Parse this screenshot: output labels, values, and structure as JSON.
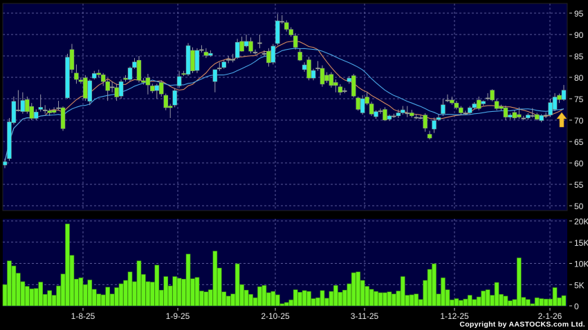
{
  "chart_data": [
    {
      "type": "candlestick",
      "title": "",
      "y_ticks": [
        "95",
        "90",
        "85",
        "80",
        "75",
        "70",
        "65",
        "60",
        "55",
        "50"
      ],
      "ylim": [
        50,
        95
      ],
      "grid": true,
      "x_tick_labels": [
        "1-8-25",
        "1-9-25",
        "2-10-25",
        "3-11-25",
        "1-12-25",
        "2-1-26"
      ],
      "colors": {
        "up": "#36E6F4",
        "down": "#80E620",
        "ma_short": "#D98C5F",
        "ma_long": "#4AA8E8",
        "background": "#000040",
        "marker_arrow": "#F2C230"
      },
      "moving_averages": [
        "ma_short",
        "ma_long"
      ],
      "marker": "up-arrow at last candle",
      "candles_ohlc": [
        [
          59.5,
          61,
          58.8,
          60.3
        ],
        [
          61,
          70.5,
          60.5,
          69.6
        ],
        [
          69.4,
          75.5,
          69,
          74.4
        ],
        [
          72.4,
          77,
          72,
          72.4
        ],
        [
          72,
          76.5,
          71.5,
          74.6
        ],
        [
          74.8,
          75.5,
          71.5,
          72
        ],
        [
          73.2,
          74,
          70,
          70.4
        ],
        [
          70.4,
          72.5,
          70,
          71.9
        ],
        [
          72.5,
          76,
          72,
          73
        ],
        [
          72.4,
          73.5,
          71.5,
          72.4
        ],
        [
          72.2,
          72.7,
          71,
          71.7
        ],
        [
          72.3,
          73,
          71.5,
          71.8
        ],
        [
          72.9,
          74.5,
          72.3,
          72.9
        ],
        [
          72.9,
          73.2,
          67.5,
          68
        ],
        [
          75.2,
          85.5,
          75,
          84.7
        ],
        [
          86.5,
          87.8,
          81,
          81.8
        ],
        [
          81,
          83,
          78.5,
          79.5
        ],
        [
          79.4,
          80,
          78.5,
          79
        ],
        [
          79.9,
          80.5,
          74.5,
          75.1
        ],
        [
          74.4,
          79.5,
          73.5,
          79.2
        ],
        [
          79.8,
          81.5,
          79.5,
          80.9
        ],
        [
          81,
          81.8,
          80,
          80.6
        ],
        [
          80.6,
          81,
          78,
          79
        ],
        [
          79,
          79.5,
          74.5,
          76.9
        ],
        [
          77.8,
          79,
          76.5,
          77.8
        ],
        [
          77.6,
          78.5,
          74.5,
          75.4
        ],
        [
          75.6,
          79.5,
          75,
          79
        ],
        [
          79.8,
          80.5,
          79,
          79.5
        ],
        [
          79.5,
          82.5,
          79,
          82.2
        ],
        [
          82.3,
          84.5,
          82,
          83.6
        ],
        [
          84,
          85,
          78.8,
          79.3
        ],
        [
          79.2,
          79.8,
          78.3,
          78.8
        ],
        [
          79.9,
          80.8,
          76,
          78.2
        ],
        [
          78,
          78.5,
          76.3,
          76.8
        ],
        [
          76.9,
          78.5,
          75,
          78.1
        ],
        [
          78.8,
          79.3,
          75.5,
          76.1
        ],
        [
          75.8,
          76.2,
          72.3,
          72.9
        ],
        [
          73.3,
          73.8,
          70.5,
          72.9
        ],
        [
          73.5,
          77.5,
          73,
          76.9
        ],
        [
          78,
          81.5,
          77.5,
          80.2
        ],
        [
          80.9,
          81.5,
          80.3,
          80.7
        ],
        [
          80.7,
          88,
          80.3,
          87.4
        ],
        [
          86.3,
          87,
          81,
          81.5
        ],
        [
          81.6,
          86.8,
          81,
          86.3
        ],
        [
          86.5,
          87.5,
          85.8,
          86.5
        ],
        [
          85.9,
          86.8,
          84.5,
          85.1
        ],
        [
          85.1,
          86.3,
          84.8,
          85.6
        ],
        [
          79,
          81.5,
          76.5,
          81.8
        ],
        [
          82.2,
          83.5,
          81.5,
          82.2
        ],
        [
          82.3,
          84,
          82,
          83.6
        ],
        [
          84.2,
          85,
          83.3,
          84.2
        ],
        [
          84.2,
          85.5,
          83.5,
          84.2
        ],
        [
          84.6,
          89,
          84.3,
          88.2
        ],
        [
          88.4,
          89.5,
          86,
          86.1
        ],
        [
          87.3,
          90,
          87,
          88.4
        ],
        [
          88.4,
          89.3,
          85.6,
          86.1
        ],
        [
          85.9,
          86.5,
          85.3,
          85.9
        ],
        [
          88.1,
          90,
          86.8,
          88.1
        ],
        [
          85.6,
          86.3,
          85,
          85.6
        ],
        [
          86.1,
          86.8,
          82.5,
          83.4
        ],
        [
          83.5,
          87.8,
          83,
          87.3
        ],
        [
          87.9,
          94.8,
          87.5,
          93.2
        ],
        [
          93.1,
          94.5,
          92.5,
          93.1
        ],
        [
          92.8,
          93.3,
          90.7,
          91.2
        ],
        [
          91.2,
          91.7,
          89.5,
          89.9
        ],
        [
          89.7,
          90.3,
          86.5,
          87
        ],
        [
          85.9,
          86.8,
          83.8,
          84
        ],
        [
          81.8,
          83.5,
          81.3,
          82.9
        ],
        [
          84.1,
          84.8,
          79.3,
          79.8
        ],
        [
          79.8,
          82,
          79.3,
          81.6
        ],
        [
          82.2,
          83.8,
          81.5,
          82.2
        ],
        [
          82.1,
          82.8,
          77.8,
          78.4
        ],
        [
          80.5,
          81.2,
          78.7,
          79.2
        ],
        [
          80.7,
          81.2,
          77.6,
          78.1
        ],
        [
          78.8,
          79.5,
          76.5,
          78.1
        ],
        [
          77.8,
          78.4,
          75.8,
          76.5
        ],
        [
          76.9,
          77.5,
          76.3,
          76.9
        ],
        [
          79,
          80.3,
          78.5,
          79.8
        ],
        [
          80.4,
          80.8,
          75.3,
          75.6
        ],
        [
          75.2,
          75.5,
          72.2,
          72.5
        ],
        [
          71.7,
          75.8,
          71.3,
          75
        ],
        [
          75.4,
          76.5,
          73.5,
          73.9
        ],
        [
          73.8,
          74.3,
          71,
          71.4
        ],
        [
          70.8,
          72.3,
          70.3,
          72
        ],
        [
          72.2,
          72.7,
          71.5,
          72.2
        ],
        [
          72.5,
          73,
          69.8,
          70
        ],
        [
          70.2,
          71.3,
          69.8,
          71
        ],
        [
          71,
          71.5,
          70.5,
          71
        ],
        [
          71,
          72.5,
          70.5,
          71.7
        ],
        [
          71.7,
          73.3,
          71.3,
          72.4
        ],
        [
          71.7,
          73.3,
          70.7,
          71.7
        ],
        [
          71.7,
          72.4,
          70.6,
          71
        ],
        [
          70.7,
          71.4,
          70.2,
          70.7
        ],
        [
          70.6,
          71.1,
          70.2,
          70.6
        ],
        [
          71.2,
          71.6,
          67.3,
          68.1
        ],
        [
          66.7,
          67.5,
          65.5,
          65.8
        ],
        [
          67.9,
          70.6,
          67,
          69.9
        ],
        [
          70.1,
          71.3,
          69.8,
          70.6
        ],
        [
          71.5,
          75,
          71,
          73.6
        ],
        [
          74.7,
          76,
          74.2,
          74.7
        ],
        [
          74.7,
          75.5,
          73.6,
          74
        ],
        [
          74,
          74.5,
          72.5,
          72.9
        ],
        [
          72.9,
          73.3,
          71.2,
          71.7
        ],
        [
          71.7,
          72.2,
          71.2,
          71.7
        ],
        [
          71.7,
          73.3,
          71.3,
          72.9
        ],
        [
          72.9,
          74.2,
          72.5,
          73.8
        ],
        [
          74.7,
          75.5,
          72.3,
          72.7
        ],
        [
          73.8,
          74.6,
          73.4,
          74.4
        ],
        [
          75.2,
          76.3,
          74.6,
          75.2
        ],
        [
          77,
          77.2,
          74.4,
          74.7
        ],
        [
          74.4,
          75,
          72.3,
          72.7
        ],
        [
          73.2,
          73.6,
          72.3,
          72.7
        ],
        [
          72.9,
          73.4,
          70,
          70.7
        ],
        [
          70.7,
          71.6,
          70.2,
          71.2
        ],
        [
          71.8,
          72.3,
          70.1,
          70.5
        ],
        [
          71.3,
          73,
          70.3,
          70.7
        ],
        [
          70.5,
          71,
          70.1,
          70.5
        ],
        [
          70.5,
          71.6,
          70.1,
          71.2
        ],
        [
          71.1,
          72.8,
          70.6,
          71.1
        ],
        [
          71.3,
          71.7,
          69.9,
          70.2
        ],
        [
          69.9,
          71.4,
          69.5,
          71.1
        ],
        [
          71.2,
          71.8,
          70.5,
          71.2
        ],
        [
          71.2,
          75,
          70.8,
          74.1
        ],
        [
          72.5,
          76.3,
          72.1,
          75.4
        ],
        [
          75.8,
          76.2,
          74,
          74.8
        ],
        [
          74.8,
          78.2,
          74.5,
          77
        ]
      ]
    },
    {
      "type": "bar",
      "title": "",
      "y_ticks": [
        "20K",
        "15K",
        "10K",
        "5K",
        "0"
      ],
      "ylim": [
        0,
        20
      ],
      "unit": "K",
      "grid": true,
      "color": "#66F21A",
      "x_tick_labels": [
        "1-8-25",
        "1-9-25",
        "2-10-25",
        "3-11-25",
        "1-12-25",
        "2-1-26"
      ],
      "values": [
        5.0,
        10.6,
        9.4,
        7.7,
        5.7,
        4.6,
        4.0,
        4.1,
        5.6,
        2.7,
        3.6,
        2.5,
        4.7,
        7.5,
        19.3,
        11.9,
        6.3,
        6.6,
        5.0,
        6.1,
        3.9,
        2.8,
        2.6,
        4.4,
        2.8,
        4.3,
        5.2,
        6.0,
        8.0,
        5.7,
        10.6,
        7.4,
        5.7,
        5.6,
        9.6,
        3.7,
        6.9,
        4.7,
        6.9,
        6.5,
        6.3,
        12.2,
        6.4,
        6.7,
        3.5,
        3.3,
        3.8,
        12.9,
        8.9,
        3.3,
        2.3,
        2.8,
        9.9,
        5.0,
        3.7,
        2.7,
        1.9,
        4.5,
        4.8,
        3.1,
        3.4,
        2.6,
        0.5,
        0.8,
        1.4,
        3.8,
        3.2,
        3.6,
        3.4,
        1.7,
        1.9,
        3.6,
        1.8,
        3.4,
        4.8,
        3.2,
        3.7,
        5.2,
        7.8,
        8.0,
        6.0,
        4.6,
        3.9,
        3.4,
        3.1,
        3.1,
        3.3,
        2.8,
        3.5,
        6.9,
        2.5,
        2.6,
        2.8,
        1.5,
        6.0,
        8.6,
        9.9,
        2.8,
        6.6,
        3.8,
        1.4,
        1.7,
        1.3,
        1.6,
        2.5,
        1.5,
        2.1,
        3.5,
        3.8,
        2.5,
        5.5,
        2.7,
        2.3,
        1.2,
        1.5,
        11.3,
        2.0,
        1.5,
        0.5,
        1.9,
        1.7,
        1.6,
        1.6,
        4.3,
        1.9,
        2.4
      ]
    }
  ],
  "footer": {
    "copyright": "Copyright by AASTOCKS.com Ltd."
  }
}
